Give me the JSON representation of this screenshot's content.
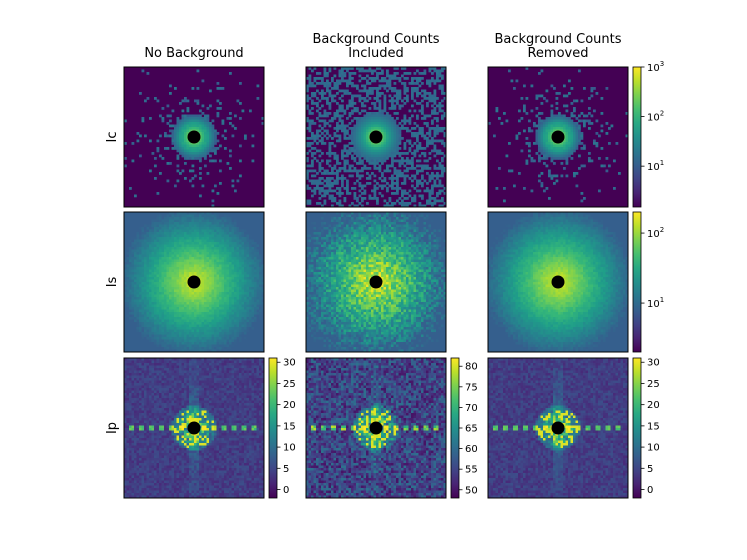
{
  "chart_data": {
    "type": "heatmap",
    "column_titles": [
      [
        "No Background"
      ],
      [
        "Background Counts",
        "Included"
      ],
      [
        "Background Counts",
        "Removed"
      ]
    ],
    "row_labels": [
      "Ic",
      "Is",
      "Ip"
    ],
    "colormap": "viridis",
    "masked_center_color": "#000000",
    "colorbars": {
      "Ic": {
        "scale": "log",
        "range": [
          1.5,
          1000
        ],
        "ticks": [
          {
            "base": "10",
            "exp": "1",
            "value": 10
          },
          {
            "base": "10",
            "exp": "2",
            "value": 100
          },
          {
            "base": "10",
            "exp": "3",
            "value": 1000
          }
        ]
      },
      "Is": {
        "scale": "log",
        "range": [
          2,
          200
        ],
        "ticks": [
          {
            "base": "10",
            "exp": "1",
            "value": 10
          },
          {
            "base": "10",
            "exp": "2",
            "value": 100
          }
        ]
      },
      "Ip_no_background": {
        "scale": "linear",
        "range": [
          -2,
          31
        ],
        "ticks": [
          "0",
          "5",
          "10",
          "15",
          "20",
          "25",
          "30"
        ]
      },
      "Ip_included": {
        "scale": "linear",
        "range": [
          48,
          82
        ],
        "ticks": [
          "50",
          "55",
          "60",
          "65",
          "70",
          "75",
          "80"
        ]
      },
      "Ip_removed": {
        "scale": "linear",
        "range": [
          -2,
          31
        ],
        "ticks": [
          "0",
          "5",
          "10",
          "15",
          "20",
          "25",
          "30"
        ]
      }
    }
  }
}
